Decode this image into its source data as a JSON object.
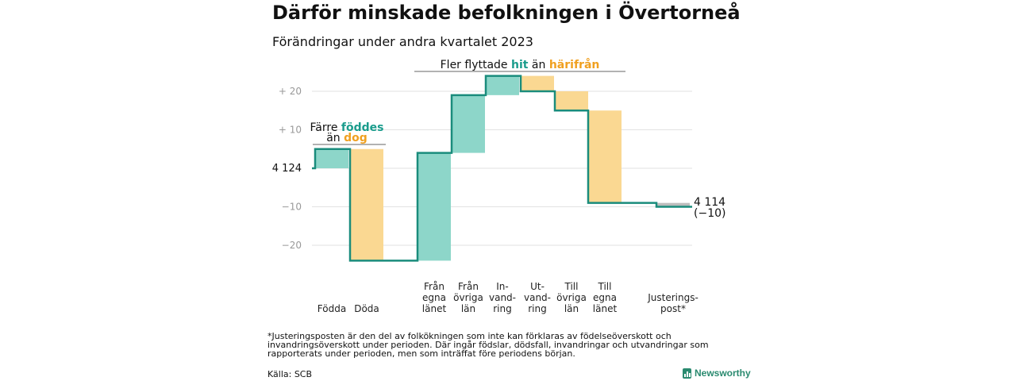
{
  "title": "Därför minskade befolkningen i Övertorneå",
  "subtitle": "Förändringar under andra kvartalet 2023",
  "footnote": "*Justeringsposten är den del av folkökningen som inte kan förklaras av födelseöverskott och invandringsöverskott under perioden. Där ingår födslar, dödsfall, invandringar och utvandringar som rapporterats under perioden, men som inträffat före periodens början.",
  "source": "Källa: SCB",
  "logo_text": "Newsworthy",
  "colors": {
    "increase": "#8dd6c9",
    "decrease": "#fad892",
    "adjustment": "#bdbdbd",
    "line": "#1a8c7c",
    "accent_hit": "#1a9c8c",
    "accent_harifran": "#f0a020"
  },
  "annotations": {
    "births_line1_pre": "Färre ",
    "births_line1_bold": "föddes",
    "births_line2_pre": "än ",
    "births_line2_bold": "dog",
    "moves_pre": "Fler flyttade ",
    "moves_bold1": "hit",
    "moves_mid": " än ",
    "moves_bold2": "härifrån"
  },
  "chart_data": {
    "type": "waterfall",
    "title": "Därför minskade befolkningen i Övertorneå",
    "subtitle": "Förändringar under andra kvartalet 2023",
    "start_value": 4124,
    "start_label": "4 124",
    "end_value": 4114,
    "end_label": "4 114",
    "end_change_label": "(−10)",
    "y_change_range": [
      -24,
      24
    ],
    "y_ticks": [
      {
        "value": 20,
        "label": "+ 20"
      },
      {
        "value": 10,
        "label": "+ 10"
      },
      {
        "value": 0,
        "label": "4 124"
      },
      {
        "value": -10,
        "label": "−10"
      },
      {
        "value": -20,
        "label": "−20"
      }
    ],
    "steps": [
      {
        "label": [
          "Födda"
        ],
        "change": 5,
        "kind": "increase"
      },
      {
        "label": [
          "Döda"
        ],
        "change": -29,
        "kind": "decrease"
      },
      {
        "label": [
          "Från",
          "egna",
          "länet"
        ],
        "change": 28,
        "kind": "increase"
      },
      {
        "label": [
          "Från",
          "övriga",
          "län"
        ],
        "change": 15,
        "kind": "increase"
      },
      {
        "label": [
          "In-",
          "vand-",
          "ring"
        ],
        "change": 5,
        "kind": "increase"
      },
      {
        "label": [
          "Ut-",
          "vand-",
          "ring"
        ],
        "change": -4,
        "kind": "decrease"
      },
      {
        "label": [
          "Till",
          "övriga",
          "län"
        ],
        "change": -5,
        "kind": "decrease"
      },
      {
        "label": [
          "Till",
          "egna",
          "länet"
        ],
        "change": -24,
        "kind": "decrease"
      },
      {
        "label": [
          "Justerings-",
          "post*"
        ],
        "change": -1,
        "kind": "adjustment"
      }
    ],
    "grid": true
  }
}
